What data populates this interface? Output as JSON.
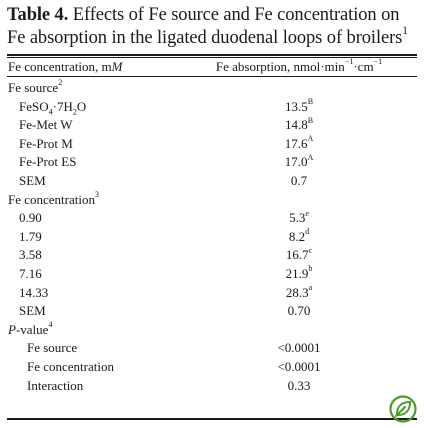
{
  "caption": {
    "label": "Table 4.",
    "text": "Effects of Fe source and Fe concentration on Fe absorption in the ligated duodenal loops of broilers",
    "footnote_mark": "1"
  },
  "columns": {
    "col1_text": "Fe concentration, m",
    "col1_unit_italic": "M",
    "col2_text": "Fe absorption, nmol·min",
    "col2_exp1": "−1",
    "col2_mid": "·cm",
    "col2_exp2": "−1"
  },
  "rows": [
    {
      "label": "Fe source",
      "label_sup": "2",
      "indent": 0
    },
    {
      "label_html": "FeSO<sub>4</sub>·7H<sub>2</sub>O",
      "label_plain": "FeSO4·7H2O",
      "value": "13.5",
      "sup": "B",
      "indent": 1
    },
    {
      "label": "Fe-Met W",
      "value": "14.8",
      "sup": "B",
      "indent": 1
    },
    {
      "label": "Fe-Prot M",
      "value": "17.6",
      "sup": "A",
      "indent": 1
    },
    {
      "label": "Fe-Prot ES",
      "value": "17.0",
      "sup": "A",
      "indent": 1
    },
    {
      "label": "SEM",
      "value": "0.7",
      "indent": 1
    },
    {
      "label": "Fe concentration",
      "label_sup": "3",
      "indent": 0
    },
    {
      "label": "0.90",
      "value": "5.3",
      "sup": "e",
      "indent": 1
    },
    {
      "label": "1.79",
      "value": "8.2",
      "sup": "d",
      "indent": 1
    },
    {
      "label": "3.58",
      "value": "16.7",
      "sup": "c",
      "indent": 1
    },
    {
      "label": "7.16",
      "value": "21.9",
      "sup": "b",
      "indent": 1
    },
    {
      "label": "14.33",
      "value": "28.3",
      "sup": "a",
      "indent": 1
    },
    {
      "label": "SEM",
      "value": "0.70",
      "indent": 1
    },
    {
      "label": "-value",
      "label_italic_prefix": "P",
      "label_sup": "4",
      "indent": 0
    },
    {
      "label": "Fe source",
      "value": "<0.0001",
      "indent": 2
    },
    {
      "label": "Fe concentration",
      "value": "<0.0001",
      "indent": 2
    },
    {
      "label": "Interaction",
      "value": "0.33",
      "indent": 2
    }
  ],
  "logo": {
    "icon": "leaf-badge-icon",
    "color": "#4c9a2a"
  }
}
